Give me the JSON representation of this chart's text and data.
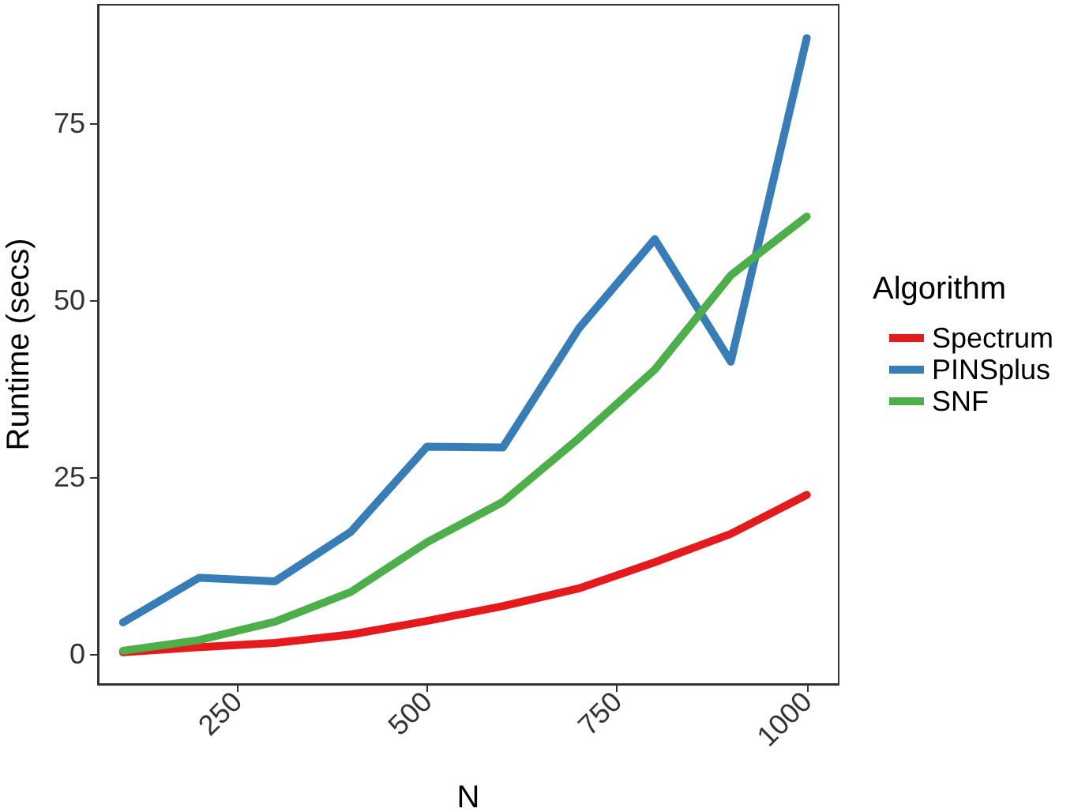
{
  "chart_data": {
    "type": "line",
    "xlabel": "N",
    "ylabel": "Runtime (secs)",
    "legend_title": "Algorithm",
    "legend": "right",
    "grid": false,
    "marker": "none",
    "line_style": "solid",
    "x": [
      100,
      200,
      300,
      400,
      500,
      600,
      700,
      800,
      900,
      1000
    ],
    "xlim": [
      67,
      1042
    ],
    "xticks": [
      250,
      500,
      750,
      1000
    ],
    "ylim": [
      -4.2,
      91.7
    ],
    "yticks": [
      0,
      25,
      50,
      75
    ],
    "series": [
      {
        "name": "Spectrum",
        "color": "#e41a1c",
        "values": [
          0.3,
          1,
          1.6,
          2.8,
          4.7,
          6.8,
          9.3,
          13,
          17,
          22.5
        ]
      },
      {
        "name": "PINSplus",
        "color": "#377eb8",
        "values": [
          4.5,
          10.8,
          10.3,
          17.3,
          29.3,
          29.2,
          46,
          58.6,
          41.3,
          87
        ]
      },
      {
        "name": "SNF",
        "color": "#4daf4a",
        "values": [
          0.5,
          2,
          4.6,
          8.8,
          15.8,
          21.5,
          30.5,
          40.2,
          53.5,
          61.8
        ]
      }
    ]
  }
}
